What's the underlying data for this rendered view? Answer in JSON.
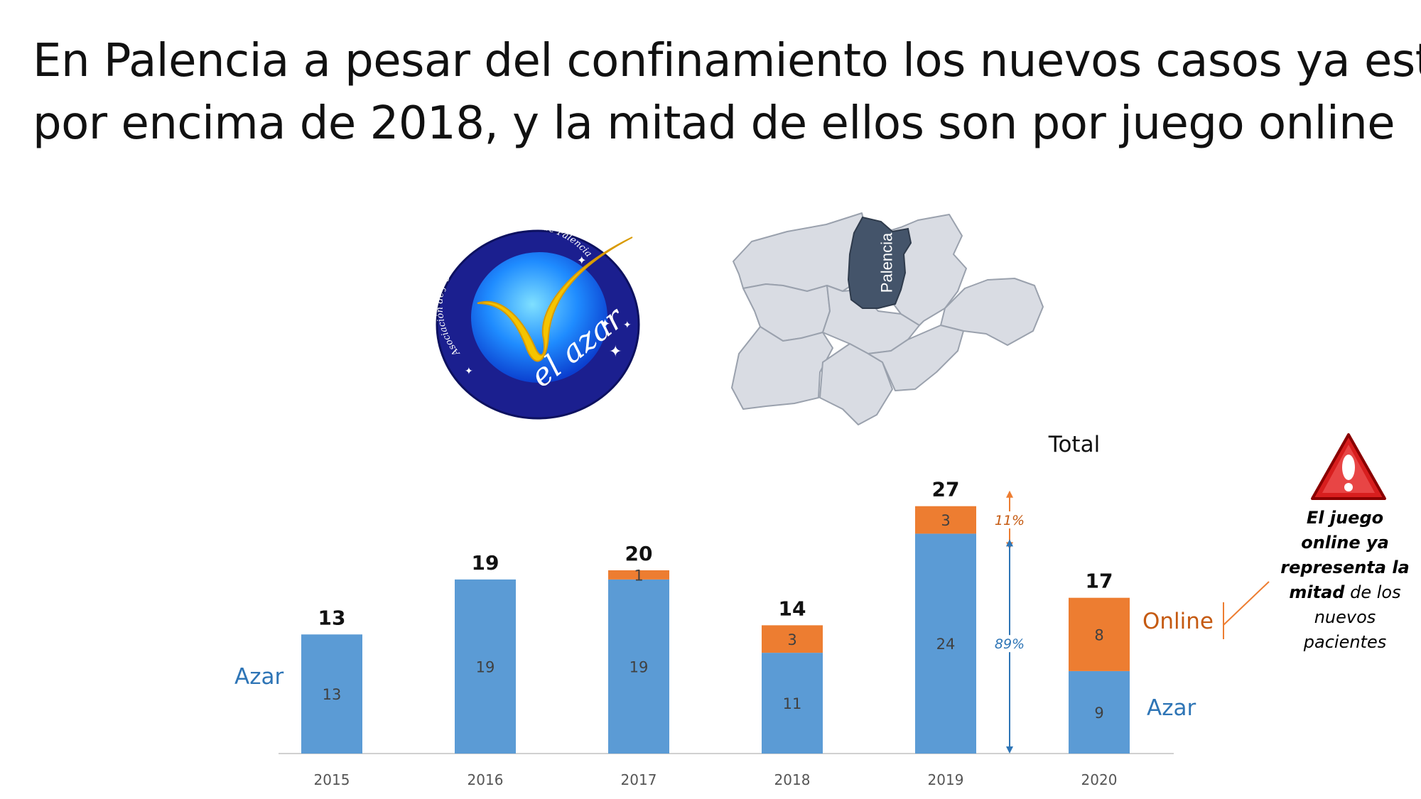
{
  "title": {
    "line1": "En Palencia a pesar del confinamiento los nuevos casos ya están",
    "line2": "por encima de 2018, y la mitad de ellos son por juego online"
  },
  "logo": {
    "arc_text": "Asociación de jugadores en recuperación de Palencia",
    "brand": "el azar"
  },
  "map": {
    "highlight_label": "Palencia"
  },
  "warning_note": {
    "bold_text": "El juego online ya representa la mitad",
    "normal_text": "de los nuevos pacientes"
  },
  "colors": {
    "azar": "#5b9bd5",
    "online": "#ed7d31",
    "azar_label": "#2e75b6",
    "online_label": "#c55a11",
    "map_fill": "#d9dce3",
    "map_highlight": "#44546a",
    "warning": "#c00000"
  },
  "chart_data": {
    "type": "bar",
    "stacked": true,
    "title": "Total",
    "categories": [
      "2015",
      "2016",
      "2017",
      "2018",
      "2019",
      "2020"
    ],
    "series": [
      {
        "name": "Azar",
        "values": [
          13,
          19,
          19,
          11,
          24,
          9
        ]
      },
      {
        "name": "Online",
        "values": [
          0,
          0,
          1,
          3,
          3,
          8
        ]
      }
    ],
    "totals": [
      13,
      19,
      20,
      14,
      27,
      17
    ],
    "ylim": [
      0,
      30
    ],
    "grid": false,
    "annotations": [
      {
        "category": "2019",
        "text": "11%",
        "series": "Online"
      },
      {
        "category": "2019",
        "text": "89%",
        "series": "Azar"
      }
    ],
    "side_labels": {
      "left_azar": "Azar",
      "right_online": "Online",
      "right_azar": "Azar"
    }
  }
}
